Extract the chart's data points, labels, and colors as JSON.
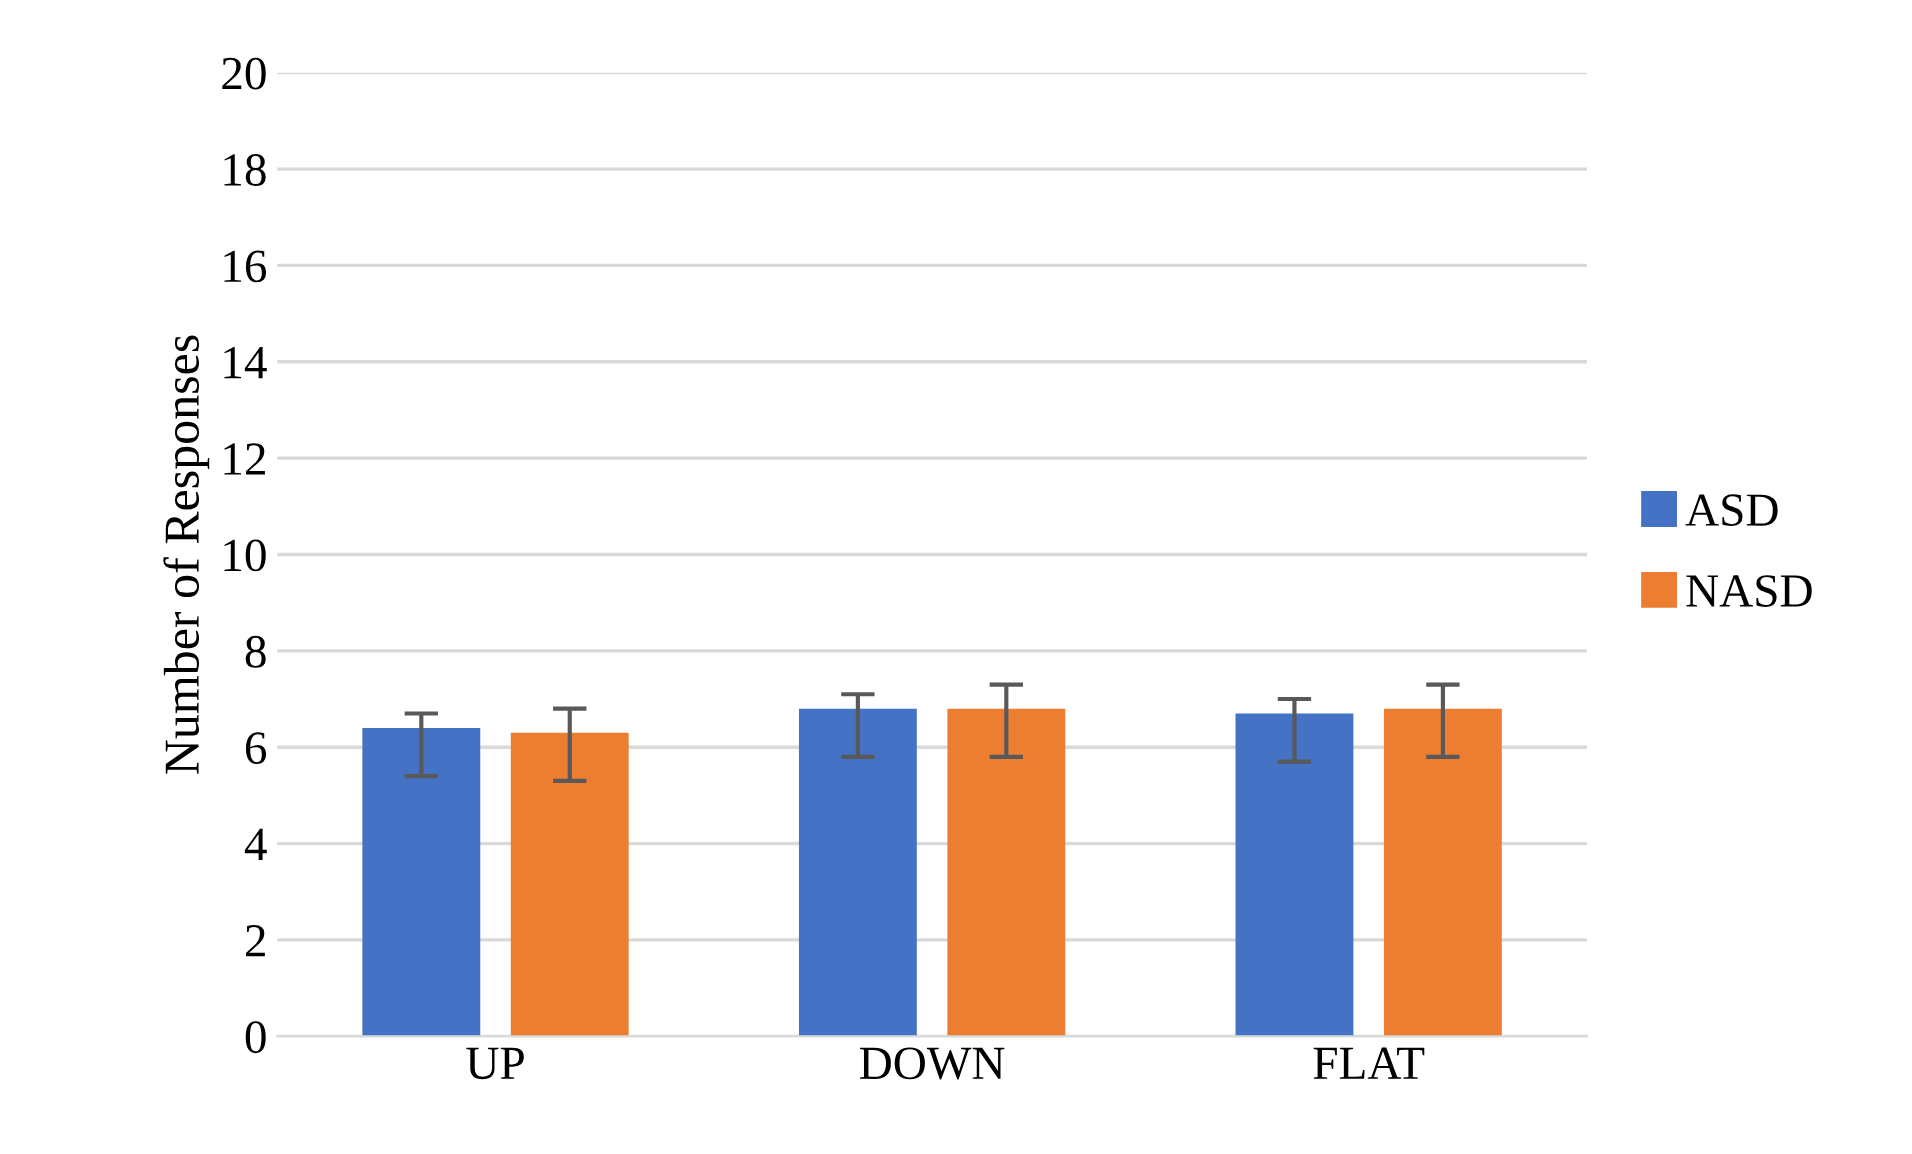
{
  "chart_data": {
    "type": "bar",
    "ylabel": "Number of Responses",
    "categories": [
      "UP",
      "DOWN",
      "FLAT"
    ],
    "series": [
      {
        "name": "ASD",
        "color": "#4472c4",
        "values": [
          6.4,
          6.8,
          6.7
        ],
        "errors": [
          [
            5.4,
            6.7
          ],
          [
            5.8,
            7.1
          ],
          [
            5.7,
            7.0
          ]
        ]
      },
      {
        "name": "NASD",
        "color": "#ed7d31",
        "values": [
          6.3,
          6.8,
          6.8
        ],
        "errors": [
          [
            5.3,
            6.8
          ],
          [
            5.8,
            7.3
          ],
          [
            5.8,
            7.3
          ]
        ]
      }
    ],
    "ylim": [
      0,
      20
    ],
    "yticks": [
      0,
      2,
      4,
      6,
      8,
      10,
      12,
      14,
      16,
      18,
      20
    ],
    "grid": "y",
    "legend": "right"
  }
}
